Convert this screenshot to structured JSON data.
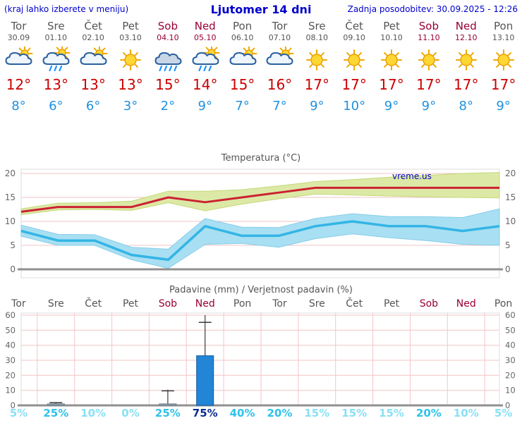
{
  "header": {
    "left_note": "(kraj lahko izberete v meniju)",
    "title": "Ljutomer 14 dni",
    "updated": "Zadnja posodobitev: 30.09.2025 - 12:26"
  },
  "colors": {
    "header_blue": "#0000cc",
    "day_gray": "#555555",
    "weekend_red": "#990033",
    "temp_max_red": "#cc0000",
    "temp_min_blue": "#2090e0",
    "line_red": "#cc2233",
    "band_green": "#dce9a6",
    "band_green_edge": "#c3d878",
    "line_blue": "#33b5e5",
    "band_blue": "#a8dff2",
    "band_blue_edge": "#86cdea",
    "bar_blue": "#2285d6",
    "grid_pink": "#f2c6c6",
    "baseline_gray": "#909090"
  },
  "days": [
    {
      "name": "Tor",
      "date": "30.09",
      "icon": "sun-cloud",
      "tmax": "12°",
      "tmin": "8°",
      "weekend": false
    },
    {
      "name": "Sre",
      "date": "01.10",
      "icon": "cloud-sun-rain",
      "tmax": "13°",
      "tmin": "6°",
      "weekend": false
    },
    {
      "name": "Čet",
      "date": "02.10",
      "icon": "sun-cloud",
      "tmax": "13°",
      "tmin": "6°",
      "weekend": false
    },
    {
      "name": "Pet",
      "date": "03.10",
      "icon": "sun",
      "tmax": "13°",
      "tmin": "3°",
      "weekend": false
    },
    {
      "name": "Sob",
      "date": "04.10",
      "icon": "cloud-rain",
      "tmax": "15°",
      "tmin": "2°",
      "weekend": true
    },
    {
      "name": "Ned",
      "date": "05.10",
      "icon": "cloud-sun-rain",
      "tmax": "14°",
      "tmin": "9°",
      "weekend": true
    },
    {
      "name": "Pon",
      "date": "06.10",
      "icon": "sun-cloud",
      "tmax": "15°",
      "tmin": "7°",
      "weekend": false
    },
    {
      "name": "Tor",
      "date": "07.10",
      "icon": "sun-cloud",
      "tmax": "16°",
      "tmin": "7°",
      "weekend": false
    },
    {
      "name": "Sre",
      "date": "08.10",
      "icon": "sun",
      "tmax": "17°",
      "tmin": "9°",
      "weekend": false
    },
    {
      "name": "Čet",
      "date": "09.10",
      "icon": "sun",
      "tmax": "17°",
      "tmin": "10°",
      "weekend": false
    },
    {
      "name": "Pet",
      "date": "10.10",
      "icon": "sun",
      "tmax": "17°",
      "tmin": "9°",
      "weekend": false
    },
    {
      "name": "Sob",
      "date": "11.10",
      "icon": "sun",
      "tmax": "17°",
      "tmin": "9°",
      "weekend": true
    },
    {
      "name": "Ned",
      "date": "12.10",
      "icon": "sun",
      "tmax": "17°",
      "tmin": "8°",
      "weekend": true
    },
    {
      "name": "Pon",
      "date": "13.10",
      "icon": "sun",
      "tmax": "17°",
      "tmin": "9°",
      "weekend": false
    }
  ],
  "chart_data": [
    {
      "type": "line",
      "title": "Temperatura (°C)",
      "categories": [
        "Tor 30.09",
        "Sre 01.10",
        "Čet 02.10",
        "Pet 03.10",
        "Sob 04.10",
        "Ned 05.10",
        "Pon 06.10",
        "Tor 07.10",
        "Sre 08.10",
        "Čet 09.10",
        "Pet 10.10",
        "Sob 11.10",
        "Ned 12.10",
        "Pon 13.10"
      ],
      "ylabel": "°C",
      "ylim": [
        -1.8,
        21
      ],
      "yticks": [
        0,
        5,
        10,
        15,
        20
      ],
      "grid": true,
      "watermark": "vreme.us",
      "series": [
        {
          "name": "max_temp",
          "color": "#cc2233",
          "values": [
            12,
            13,
            13,
            13,
            15,
            14,
            15,
            16,
            17,
            17,
            17,
            17,
            17,
            17
          ]
        },
        {
          "name": "max_range_upper",
          "values": [
            12.6,
            13.8,
            13.9,
            14.2,
            16.3,
            16.3,
            16.6,
            17.4,
            18.3,
            18.7,
            19.2,
            19.6,
            20,
            20.2
          ]
        },
        {
          "name": "max_range_lower",
          "values": [
            11.4,
            12.4,
            12.5,
            12.3,
            13.9,
            12.2,
            13.6,
            14.7,
            15.7,
            15.5,
            15.3,
            15.1,
            15,
            14.9
          ]
        },
        {
          "name": "min_temp",
          "color": "#33b5e5",
          "values": [
            8,
            6,
            6,
            3,
            2,
            9,
            7,
            7,
            9,
            10,
            9,
            9,
            8,
            9
          ]
        },
        {
          "name": "min_range_upper",
          "values": [
            9.2,
            7.3,
            7.2,
            4.6,
            4.2,
            10.6,
            8.8,
            8.7,
            10.6,
            11.6,
            11,
            11,
            10.8,
            12.6
          ]
        },
        {
          "name": "min_range_lower",
          "values": [
            6.9,
            5,
            5,
            2,
            0.2,
            5.2,
            5.4,
            4.6,
            6.4,
            7.4,
            6.6,
            6,
            5.2,
            5
          ]
        }
      ]
    },
    {
      "type": "bar",
      "title": "Padavine (mm) / Verjetnost padavin (%)",
      "categories": [
        "Tor",
        "Sre",
        "Čet",
        "Pet",
        "Sob",
        "Ned",
        "Pon",
        "Tor",
        "Sre",
        "Čet",
        "Pet",
        "Sob",
        "Ned",
        "Pon"
      ],
      "weekend_flags": [
        false,
        false,
        false,
        false,
        true,
        true,
        false,
        false,
        false,
        false,
        false,
        true,
        true,
        false
      ],
      "ylim": [
        0,
        63
      ],
      "yticks": [
        0,
        10,
        20,
        30,
        40,
        50,
        60
      ],
      "grid": true,
      "precip_mm": [
        0,
        1,
        0,
        0,
        1,
        33,
        0,
        0,
        0,
        0,
        0,
        0,
        0,
        0
      ],
      "precip_max_mm": [
        0,
        2,
        0,
        0,
        10.5,
        60,
        0,
        0,
        0,
        0,
        0,
        0,
        0,
        0
      ],
      "probability_pct": [
        5,
        25,
        10,
        0,
        25,
        75,
        40,
        20,
        15,
        15,
        15,
        20,
        10,
        5
      ]
    }
  ]
}
